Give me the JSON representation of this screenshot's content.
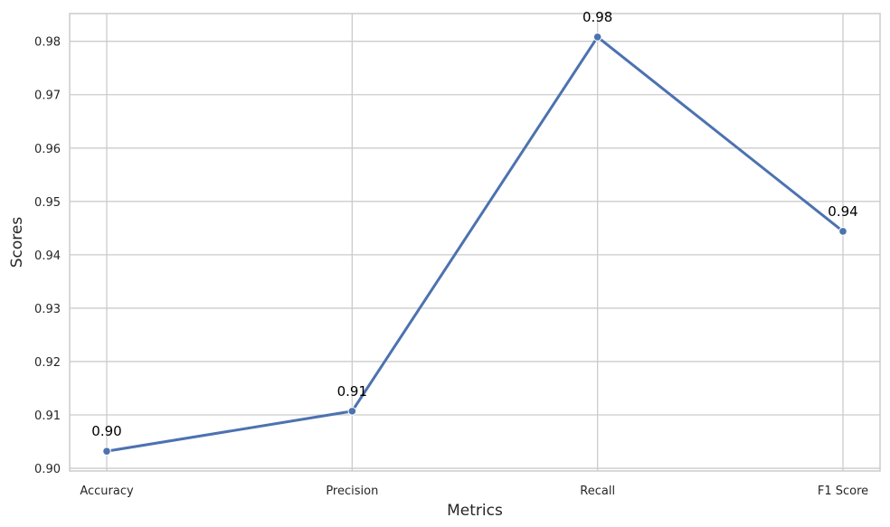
{
  "chart_data": {
    "type": "line",
    "categories": [
      "Accuracy",
      "Precision",
      "Recall",
      "F1 Score"
    ],
    "series": [
      {
        "values": [
          0.9032,
          0.9107,
          0.9808,
          0.9444
        ],
        "labels": [
          "0.90",
          "0.91",
          "0.98",
          "0.94"
        ]
      }
    ],
    "title": "",
    "xlabel": "Metrics",
    "ylabel": "Scores",
    "ylim": [
      0.8995,
      0.9852
    ],
    "yticks": [
      0.9,
      0.91,
      0.92,
      0.93,
      0.94,
      0.95,
      0.96,
      0.97,
      0.98
    ],
    "ytick_labels": [
      "0.90",
      "0.91",
      "0.92",
      "0.93",
      "0.94",
      "0.95",
      "0.96",
      "0.97",
      "0.98"
    ],
    "grid": true,
    "line_color": "#4c72b0",
    "grid_color": "#cccccc",
    "legend": "none"
  }
}
